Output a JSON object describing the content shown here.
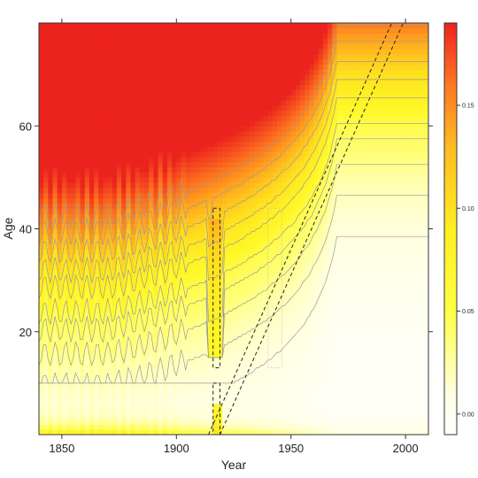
{
  "chart_data": {
    "type": "heatmap",
    "title": "",
    "xlabel": "Year",
    "ylabel": "Age",
    "xlim": [
      1840,
      2010
    ],
    "ylim": [
      0,
      80
    ],
    "x_ticks": [
      1850,
      1900,
      1950,
      2000
    ],
    "y_ticks": [
      20,
      40,
      60
    ],
    "x_tick_labels": [
      "1850",
      "1900",
      "1950",
      "2000"
    ],
    "y_tick_labels": [
      "20",
      "40",
      "60"
    ],
    "colorbar": {
      "range": [
        -0.01,
        0.19
      ],
      "ticks": [
        0.0,
        0.05,
        0.1,
        0.15
      ],
      "tick_labels": [
        "0.00",
        "0.05",
        "0.10",
        "0.15"
      ],
      "low_color": "#ffffff",
      "mid_color": "#ffff33",
      "high_color": "#ee2222"
    },
    "contour_levels": [
      0.003,
      0.006,
      0.01,
      0.015,
      0.02,
      0.03,
      0.04,
      0.055,
      0.075,
      0.1
    ],
    "contour_color": "#999999",
    "annotations": [
      {
        "kind": "dashed-rect",
        "x": [
          1916,
          1919
        ],
        "y": [
          13,
          44
        ],
        "color": "#222222"
      },
      {
        "kind": "dashed-rect",
        "x": [
          1916,
          1919
        ],
        "y": [
          0,
          10
        ],
        "color": "#222222"
      },
      {
        "kind": "dotted-rect",
        "x": [
          1940,
          1946
        ],
        "y": [
          13,
          44
        ],
        "color": "#bbbbbb"
      },
      {
        "kind": "cohort-band",
        "cohort_start": [
          1914,
          1919
        ],
        "from_year": 1914,
        "to_year": 2010,
        "color": "#222222"
      }
    ]
  }
}
